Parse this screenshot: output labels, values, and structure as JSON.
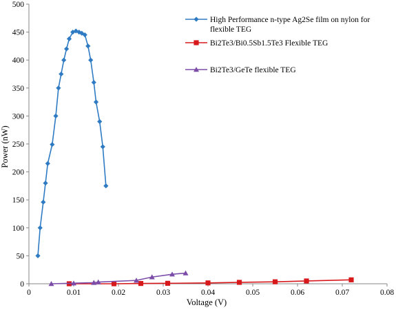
{
  "chart_data": {
    "type": "line",
    "title": "",
    "xlabel": "Voltage (V)",
    "ylabel": "Power (nW)",
    "xlim": [
      0,
      0.08
    ],
    "ylim": [
      0,
      500
    ],
    "x_ticks": [
      0,
      0.01,
      0.02,
      0.03,
      0.04,
      0.05,
      0.06,
      0.07,
      0.08
    ],
    "x_tick_labels": [
      "0",
      "0.01",
      "0.02",
      "0.03",
      "0.04",
      "0.05",
      "0.06",
      "0.07",
      "0.08"
    ],
    "y_ticks": [
      0,
      50,
      100,
      150,
      200,
      250,
      300,
      350,
      400,
      450,
      500
    ],
    "y_tick_labels": [
      "0",
      "50",
      "100",
      "150",
      "200",
      "250",
      "300",
      "350",
      "400",
      "450",
      "500"
    ],
    "grid": false,
    "legend_position": "top-right",
    "series": [
      {
        "name": "High Performance n-type Ag2Se film on nylon for flexible TEG",
        "legend_lines": [
          "High Performance n-type Ag2Se film on nylon for",
          "flexible TEG"
        ],
        "color": "#2E7BC4",
        "marker": "diamond",
        "points": [
          [
            0.002,
            50
          ],
          [
            0.0025,
            100
          ],
          [
            0.0032,
            146
          ],
          [
            0.0037,
            180
          ],
          [
            0.0042,
            215
          ],
          [
            0.0052,
            249
          ],
          [
            0.006,
            300
          ],
          [
            0.0066,
            350
          ],
          [
            0.0072,
            375
          ],
          [
            0.0078,
            400
          ],
          [
            0.0084,
            420
          ],
          [
            0.009,
            438
          ],
          [
            0.0098,
            450
          ],
          [
            0.0105,
            452
          ],
          [
            0.0112,
            450
          ],
          [
            0.0118,
            448
          ],
          [
            0.0125,
            445
          ],
          [
            0.0132,
            425
          ],
          [
            0.0138,
            400
          ],
          [
            0.0145,
            360
          ],
          [
            0.015,
            325
          ],
          [
            0.0158,
            290
          ],
          [
            0.0165,
            245
          ],
          [
            0.0172,
            175
          ]
        ]
      },
      {
        "name": "Bi2Te3/Bi0.5Sb1.5Te3 Flexible TEG",
        "legend_lines": [
          "Bi2Te3/Bi0.5Sb1.5Te3 Flexible TEG"
        ],
        "color": "#D7191C",
        "marker": "square",
        "points": [
          [
            0.009,
            0
          ],
          [
            0.019,
            0
          ],
          [
            0.025,
            0.5
          ],
          [
            0.031,
            0.8
          ],
          [
            0.04,
            1.5
          ],
          [
            0.047,
            2.5
          ],
          [
            0.055,
            3.5
          ],
          [
            0.062,
            5
          ],
          [
            0.072,
            7
          ]
        ]
      },
      {
        "name": "Bi2Te3/GeTe flexible TEG",
        "legend_lines": [
          "Bi2Te3/GeTe flexible TEG"
        ],
        "color": "#7B4CA8",
        "marker": "triangle",
        "points": [
          [
            0.005,
            0
          ],
          [
            0.01,
            1
          ],
          [
            0.0145,
            2
          ],
          [
            0.0155,
            3
          ],
          [
            0.024,
            6
          ],
          [
            0.0275,
            12
          ],
          [
            0.032,
            17
          ],
          [
            0.035,
            19
          ]
        ]
      }
    ]
  }
}
